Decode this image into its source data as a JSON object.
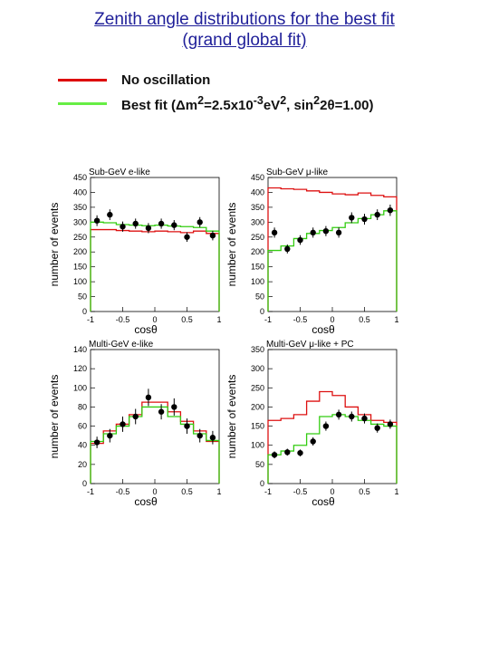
{
  "page": {
    "title_line1": "Zenith angle distributions for the best fit",
    "title_line2": "(grand global fit)"
  },
  "legend": {
    "items": [
      {
        "label": "No oscillation",
        "color": "#dd0000"
      },
      {
        "label": "Best fit (Δm2=2.5x10-3eV2, sin22θ=1.00)",
        "color": "#66ee44"
      }
    ]
  },
  "colors": {
    "no_osc": "#dd1111",
    "best_fit": "#33cc11",
    "data": "#000000"
  },
  "chart_data": [
    {
      "type": "line",
      "title": "Sub-GeV e-like",
      "xlabel": "cosθ",
      "ylabel": "number of events",
      "xlim": [
        -1,
        1
      ],
      "ylim": [
        0,
        450
      ],
      "xticks": [
        "-1",
        "-0.5",
        "0",
        "0.5",
        "1"
      ],
      "yticks": [
        "0",
        "50",
        "100",
        "150",
        "200",
        "250",
        "300",
        "350",
        "400",
        "450"
      ],
      "bin_edges": [
        -1,
        -0.8,
        -0.6,
        -0.4,
        -0.2,
        0,
        0.2,
        0.4,
        0.6,
        0.8,
        1
      ],
      "series": [
        {
          "key": "no_osc",
          "values": [
            275,
            275,
            272,
            270,
            268,
            270,
            268,
            265,
            270,
            262
          ]
        },
        {
          "key": "best_fit",
          "values": [
            300,
            298,
            292,
            290,
            288,
            290,
            287,
            285,
            282,
            270
          ]
        },
        {
          "key": "data",
          "x": [
            -0.9,
            -0.7,
            -0.5,
            -0.3,
            -0.1,
            0.1,
            0.3,
            0.5,
            0.7,
            0.9
          ],
          "values": [
            305,
            325,
            285,
            295,
            280,
            295,
            290,
            250,
            300,
            255
          ],
          "errors": [
            18,
            18,
            17,
            17,
            17,
            17,
            17,
            16,
            17,
            16
          ]
        }
      ]
    },
    {
      "type": "line",
      "title": "Sub-GeV μ-like",
      "xlabel": "cosθ",
      "ylabel": "number of events",
      "xlim": [
        -1,
        1
      ],
      "ylim": [
        0,
        450
      ],
      "xticks": [
        "-1",
        "-0.5",
        "0",
        "0.5",
        "1"
      ],
      "yticks": [
        "0",
        "50",
        "100",
        "150",
        "200",
        "250",
        "300",
        "350",
        "400",
        "450"
      ],
      "bin_edges": [
        -1,
        -0.8,
        -0.6,
        -0.4,
        -0.2,
        0,
        0.2,
        0.4,
        0.6,
        0.8,
        1
      ],
      "series": [
        {
          "key": "no_osc",
          "values": [
            415,
            412,
            410,
            405,
            400,
            395,
            392,
            398,
            390,
            385
          ]
        },
        {
          "key": "best_fit",
          "values": [
            205,
            220,
            245,
            262,
            272,
            282,
            298,
            312,
            325,
            338
          ]
        },
        {
          "key": "data",
          "x": [
            -0.9,
            -0.7,
            -0.5,
            -0.3,
            -0.1,
            0.1,
            0.3,
            0.5,
            0.7,
            0.9
          ],
          "values": [
            265,
            210,
            240,
            265,
            270,
            265,
            315,
            310,
            325,
            340
          ],
          "errors": [
            17,
            15,
            16,
            17,
            17,
            17,
            18,
            18,
            18,
            19
          ]
        }
      ]
    },
    {
      "type": "line",
      "title": "Multi-GeV e-like",
      "xlabel": "cosθ",
      "ylabel": "number of events",
      "xlim": [
        -1,
        1
      ],
      "ylim": [
        0,
        140
      ],
      "xticks": [
        "-1",
        "-0.5",
        "0",
        "0.5",
        "1"
      ],
      "yticks": [
        "0",
        "20",
        "40",
        "60",
        "80",
        "100",
        "120",
        "140"
      ],
      "bin_edges": [
        -1,
        -0.8,
        -0.6,
        -0.4,
        -0.2,
        0,
        0.2,
        0.4,
        0.6,
        0.8,
        1
      ],
      "series": [
        {
          "key": "no_osc",
          "values": [
            42,
            55,
            62,
            72,
            85,
            85,
            75,
            65,
            55,
            44
          ]
        },
        {
          "key": "best_fit",
          "values": [
            44,
            52,
            60,
            70,
            80,
            80,
            70,
            62,
            52,
            45
          ]
        },
        {
          "key": "data",
          "x": [
            -0.9,
            -0.7,
            -0.5,
            -0.3,
            -0.1,
            0.1,
            0.3,
            0.5,
            0.7,
            0.9
          ],
          "values": [
            43,
            50,
            62,
            70,
            90,
            75,
            80,
            60,
            50,
            48
          ],
          "errors": [
            6,
            7,
            8,
            8,
            9,
            8,
            9,
            8,
            7,
            7
          ]
        }
      ]
    },
    {
      "type": "line",
      "title": "Multi-GeV μ-like + PC",
      "xlabel": "cosθ",
      "ylabel": "number of events",
      "xlim": [
        -1,
        1
      ],
      "ylim": [
        0,
        350
      ],
      "xticks": [
        "-1",
        "-0.5",
        "0",
        "0.5",
        "1"
      ],
      "yticks": [
        "0",
        "50",
        "100",
        "150",
        "200",
        "250",
        "300",
        "350"
      ],
      "bin_edges": [
        -1,
        -0.8,
        -0.6,
        -0.4,
        -0.2,
        0,
        0.2,
        0.4,
        0.6,
        0.8,
        1
      ],
      "series": [
        {
          "key": "no_osc",
          "values": [
            165,
            170,
            180,
            215,
            240,
            230,
            200,
            180,
            165,
            160
          ]
        },
        {
          "key": "best_fit",
          "values": [
            75,
            85,
            100,
            130,
            175,
            180,
            175,
            165,
            155,
            150
          ]
        },
        {
          "key": "data",
          "x": [
            -0.9,
            -0.7,
            -0.5,
            -0.3,
            -0.1,
            0.1,
            0.3,
            0.5,
            0.7,
            0.9
          ],
          "values": [
            75,
            82,
            80,
            110,
            150,
            180,
            175,
            170,
            145,
            155
          ],
          "errors": [
            9,
            9,
            9,
            11,
            12,
            13,
            13,
            13,
            12,
            12
          ]
        }
      ]
    }
  ]
}
